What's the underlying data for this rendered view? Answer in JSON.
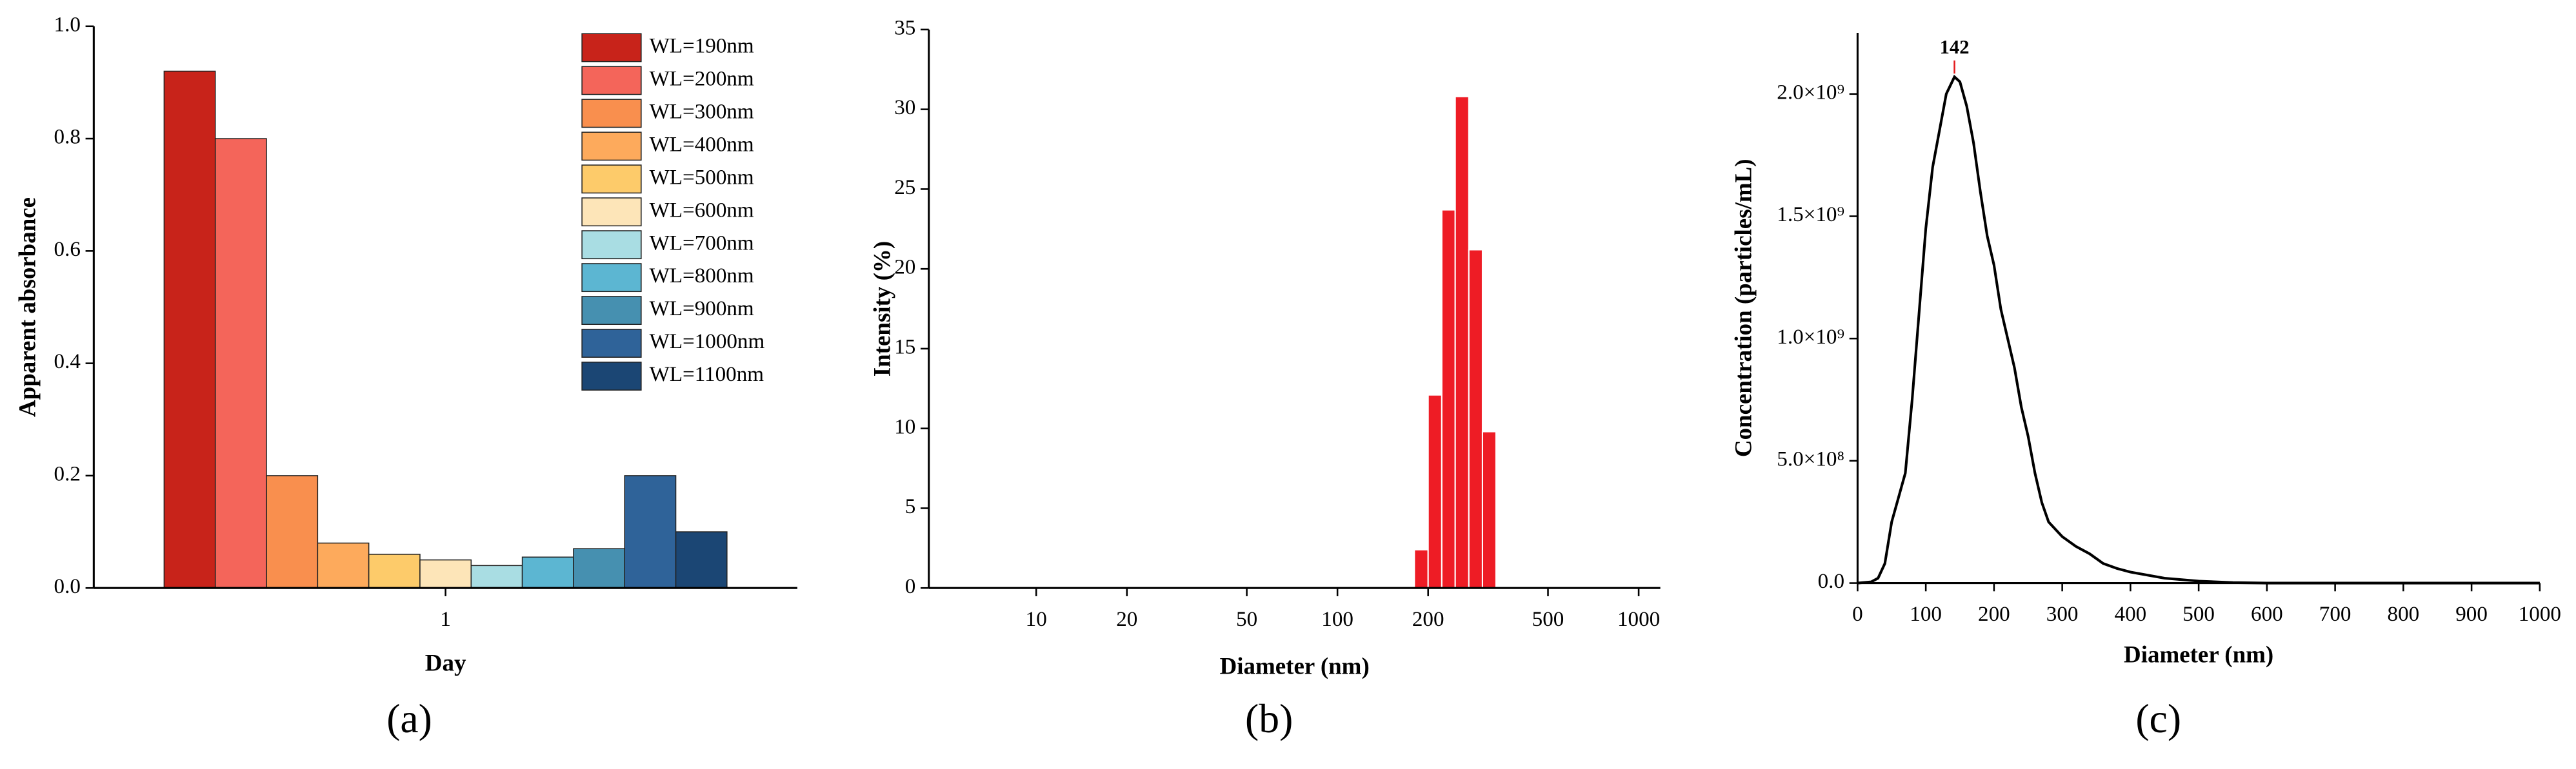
{
  "chart_data": [
    {
      "type": "bar",
      "caption": "(a)",
      "xlabel": "Day",
      "ylabel": "Apparent absorbance",
      "categories": [
        "1"
      ],
      "series": [
        {
          "name": "WL=190nm",
          "color": "#c8231a",
          "values": [
            0.92
          ]
        },
        {
          "name": "WL=200nm",
          "color": "#f4655a",
          "values": [
            0.8
          ]
        },
        {
          "name": "WL=300nm",
          "color": "#f98f4e",
          "values": [
            0.2
          ]
        },
        {
          "name": "WL=400nm",
          "color": "#fdaa5c",
          "values": [
            0.08
          ]
        },
        {
          "name": "WL=500nm",
          "color": "#fdcb6a",
          "values": [
            0.06
          ]
        },
        {
          "name": "WL=600nm",
          "color": "#fde5b8",
          "values": [
            0.05
          ]
        },
        {
          "name": "WL=700nm",
          "color": "#a9dde3",
          "values": [
            0.04
          ]
        },
        {
          "name": "WL=800nm",
          "color": "#5cb6d2",
          "values": [
            0.055
          ]
        },
        {
          "name": "WL=900nm",
          "color": "#4690b0",
          "values": [
            0.07
          ]
        },
        {
          "name": "WL=1000nm",
          "color": "#2f6399",
          "values": [
            0.2
          ]
        },
        {
          "name": "WL=1100nm",
          "color": "#1b4674",
          "values": [
            0.1
          ]
        }
      ],
      "ylim": [
        0,
        1
      ],
      "yticks": [
        {
          "value": 0,
          "label": "0.0"
        },
        0.2,
        0.4,
        0.6,
        0.8,
        {
          "value": 1,
          "label": "1.0"
        }
      ],
      "legend": "upper right"
    },
    {
      "type": "histogram",
      "caption": "(b)",
      "xlabel": "Diameter (nm)",
      "ylabel": "Intensity (%)",
      "bins": [
        180,
        200,
        222,
        246,
        273,
        303,
        336
      ],
      "values": [
        2.4,
        12.1,
        23.7,
        30.8,
        21.2,
        9.8
      ],
      "color": "#ee1c25",
      "xlog": true,
      "xlim": [
        4.4,
        1180
      ],
      "xticks": [
        10,
        20,
        50,
        100,
        200,
        500,
        1000
      ],
      "ylim": [
        0,
        35
      ],
      "yticks": [
        0,
        5,
        10,
        15,
        20,
        25,
        30,
        35
      ]
    },
    {
      "type": "line",
      "caption": "(c)",
      "xlabel": "Diameter (nm)",
      "ylabel": "Concentration (particles/mL)",
      "color": "#000000",
      "x": [
        0,
        20,
        30,
        40,
        50,
        60,
        70,
        80,
        90,
        100,
        110,
        120,
        130,
        142,
        150,
        160,
        170,
        180,
        190,
        200,
        210,
        220,
        230,
        240,
        250,
        260,
        270,
        280,
        300,
        320,
        340,
        360,
        380,
        400,
        450,
        500,
        550,
        600,
        1000
      ],
      "values": [
        0,
        5000000,
        20000000,
        80000000,
        250000000,
        350000000,
        450000000,
        750000000,
        1100000000,
        1450000000,
        1700000000,
        1850000000,
        2000000000,
        2070000000,
        2050000000,
        1950000000,
        1800000000,
        1600000000,
        1420000000,
        1300000000,
        1120000000,
        1000000000,
        880000000,
        720000000,
        600000000,
        450000000,
        330000000,
        250000000,
        190000000,
        150000000,
        120000000,
        80000000,
        60000000,
        45000000,
        20000000,
        8000000,
        2000000,
        0,
        0
      ],
      "xlim": [
        0,
        1000
      ],
      "xticks": [
        0,
        100,
        200,
        300,
        400,
        500,
        600,
        700,
        800,
        900,
        1000
      ],
      "ylim": [
        0,
        2250000000
      ],
      "yticks": [
        {
          "value": 0,
          "label": "0.0"
        },
        {
          "value": 500000000,
          "label": "5.0×10⁸"
        },
        {
          "value": 1000000000,
          "label": "1.0×10⁹"
        },
        {
          "value": 1500000000,
          "label": "1.5×10⁹"
        },
        {
          "value": 2000000000,
          "label": "2.0×10⁹"
        }
      ],
      "annotations": [
        {
          "x": 142,
          "label": "142",
          "color": "#e31a1c"
        }
      ]
    }
  ]
}
